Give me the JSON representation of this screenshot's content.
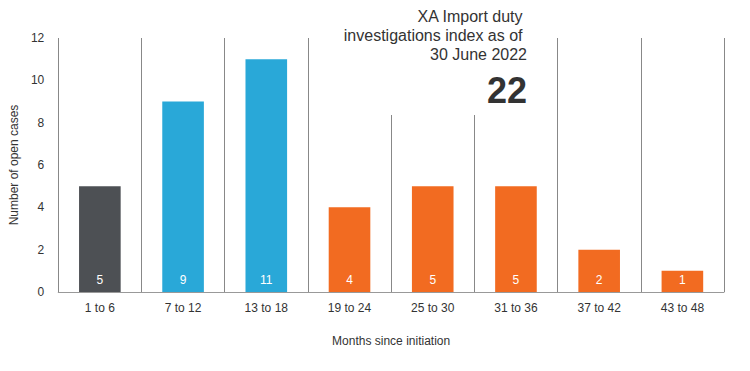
{
  "chart_data": {
    "type": "bar",
    "title": "XA Import duty investigations index as of 30 June 2022",
    "subtitle": "22",
    "x_label": "Months since initiation",
    "y_label": "Number of open cases",
    "categories": [
      "1 to 6",
      "7 to 12",
      "13 to 18",
      "19 to 24",
      "25 to 30",
      "31 to 36",
      "37 to 42",
      "43 to 48"
    ],
    "values": [
      5,
      9,
      11,
      4,
      5,
      5,
      2,
      1
    ],
    "colors": [
      "#4d5054",
      "#29a8d8",
      "#29a8d8",
      "#f26b21",
      "#f26b21",
      "#f26b21",
      "#f26b21",
      "#f26b21"
    ],
    "ylim": [
      0,
      12
    ],
    "yticks": [
      0,
      2,
      4,
      6,
      8,
      10,
      12
    ],
    "grid": "x",
    "data_labels": true
  }
}
